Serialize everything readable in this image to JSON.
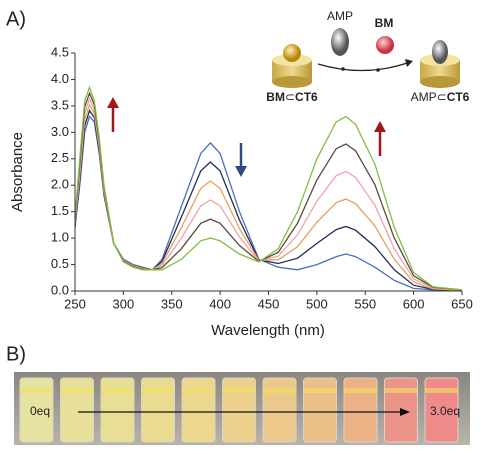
{
  "panel_labels": [
    "A)",
    "B)"
  ],
  "inset": {
    "guest": "AMP",
    "dye": "BM",
    "left_label": [
      "BM",
      "⊂",
      "CT6"
    ],
    "right_label": [
      "AMP⊂",
      "CT6"
    ]
  },
  "photo": {
    "start_label": "0eq",
    "end_label": "3.0eq"
  },
  "chart_data": {
    "type": "line",
    "x_label": "Wavelength (nm)",
    "y_label": "Absorbance",
    "x": [
      250,
      255,
      260,
      265,
      270,
      275,
      280,
      290,
      300,
      310,
      320,
      330,
      340,
      360,
      380,
      390,
      400,
      420,
      440,
      460,
      480,
      500,
      520,
      530,
      540,
      560,
      580,
      600,
      620,
      650
    ],
    "series": [
      {
        "color": "#4a6fc0",
        "values": [
          1.2,
          2.0,
          3.0,
          3.3,
          3.2,
          2.6,
          1.8,
          0.9,
          0.6,
          0.5,
          0.45,
          0.4,
          0.6,
          1.6,
          2.6,
          2.8,
          2.6,
          1.5,
          0.6,
          0.45,
          0.4,
          0.5,
          0.65,
          0.7,
          0.65,
          0.45,
          0.2,
          0.05,
          0.02,
          0.01
        ]
      },
      {
        "color": "#1f2d5a",
        "values": [
          1.24,
          2.1,
          3.12,
          3.41,
          3.28,
          2.66,
          1.84,
          0.9,
          0.59,
          0.49,
          0.44,
          0.4,
          0.56,
          1.4,
          2.27,
          2.44,
          2.27,
          1.34,
          0.59,
          0.52,
          0.62,
          0.9,
          1.16,
          1.22,
          1.15,
          0.84,
          0.4,
          0.11,
          0.03,
          0.01
        ]
      },
      {
        "color": "#e8a060",
        "values": [
          1.28,
          2.2,
          3.24,
          3.52,
          3.36,
          2.72,
          1.88,
          0.9,
          0.58,
          0.48,
          0.43,
          0.4,
          0.52,
          1.2,
          1.94,
          2.08,
          1.94,
          1.18,
          0.58,
          0.59,
          0.84,
          1.3,
          1.67,
          1.74,
          1.65,
          1.23,
          0.6,
          0.17,
          0.04,
          0.01
        ]
      },
      {
        "color": "#f2a0a8",
        "values": [
          1.32,
          2.3,
          3.36,
          3.63,
          3.44,
          2.78,
          1.92,
          0.9,
          0.57,
          0.47,
          0.42,
          0.4,
          0.48,
          1.0,
          1.61,
          1.72,
          1.61,
          1.02,
          0.57,
          0.66,
          1.06,
          1.7,
          2.18,
          2.26,
          2.15,
          1.62,
          0.8,
          0.23,
          0.06,
          0.02
        ]
      },
      {
        "color": "#5a4a3a",
        "values": [
          1.36,
          2.4,
          3.48,
          3.74,
          3.52,
          2.84,
          1.96,
          0.9,
          0.56,
          0.46,
          0.41,
          0.4,
          0.44,
          0.8,
          1.28,
          1.36,
          1.28,
          0.86,
          0.56,
          0.73,
          1.28,
          2.1,
          2.69,
          2.78,
          2.65,
          2.01,
          1.0,
          0.29,
          0.07,
          0.02
        ]
      },
      {
        "color": "#7fbf3f",
        "values": [
          1.4,
          2.5,
          3.6,
          3.85,
          3.6,
          2.9,
          2.0,
          0.9,
          0.55,
          0.45,
          0.4,
          0.4,
          0.4,
          0.6,
          0.95,
          1.0,
          0.95,
          0.7,
          0.55,
          0.8,
          1.5,
          2.5,
          3.2,
          3.3,
          3.15,
          2.4,
          1.2,
          0.35,
          0.08,
          0.02
        ]
      }
    ],
    "xlim": [
      250,
      650
    ],
    "xticks": [
      250,
      300,
      350,
      400,
      450,
      500,
      550,
      600,
      650
    ],
    "ylim": [
      0,
      4.5
    ],
    "yticks": [
      {
        "value": 0,
        "label": "0.0"
      },
      0.5,
      {
        "value": 1,
        "label": "1.0"
      },
      1.5,
      {
        "value": 2,
        "label": "2.0"
      },
      2.5,
      {
        "value": 3,
        "label": "3.0"
      },
      3.5,
      {
        "value": 4,
        "label": "4.0"
      },
      4.5
    ]
  }
}
